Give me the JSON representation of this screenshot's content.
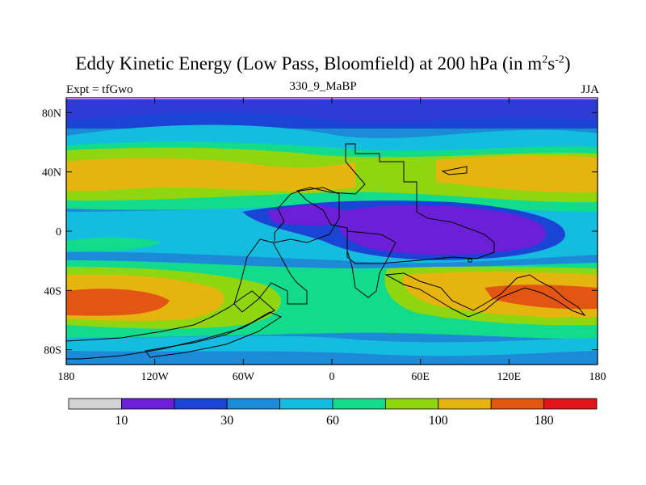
{
  "title_main": "Eddy Kinetic Energy (Low Pass, Bloomfield) at 200 hPa (in m",
  "title_sup1": "2",
  "title_mid": "s",
  "title_sup2": "-2",
  "title_end": ")",
  "subtitle_left": "Expt = tfGwo",
  "subtitle_center": "330_9_MaBP",
  "subtitle_right": "JJA",
  "map": {
    "lat_ticks": [
      {
        "lat": 80,
        "label": "80N"
      },
      {
        "lat": 40,
        "label": "40N"
      },
      {
        "lat": 0,
        "label": "0"
      },
      {
        "lat": -40,
        "label": "40S"
      },
      {
        "lat": -80,
        "label": "80S"
      }
    ],
    "lon_ticks": [
      {
        "lon": -180,
        "label": "180"
      },
      {
        "lon": -120,
        "label": "120W"
      },
      {
        "lon": -60,
        "label": "60W"
      },
      {
        "lon": 0,
        "label": "0"
      },
      {
        "lon": 60,
        "label": "60E"
      },
      {
        "lon": 120,
        "label": "120E"
      },
      {
        "lon": 180,
        "label": "180"
      }
    ]
  },
  "colorbar": {
    "colors": [
      "#d3d3d3",
      "#6b1fd6",
      "#1a45d4",
      "#1d8ad8",
      "#14bde0",
      "#12db8c",
      "#8fd611",
      "#e6b40f",
      "#e25513",
      "#e3141b"
    ],
    "labels": [
      {
        "after_box": 1,
        "text": "10"
      },
      {
        "after_box": 3,
        "text": "30"
      },
      {
        "after_box": 5,
        "text": "60"
      },
      {
        "after_box": 7,
        "text": "100"
      },
      {
        "after_box": 9,
        "text": "180"
      }
    ]
  }
}
